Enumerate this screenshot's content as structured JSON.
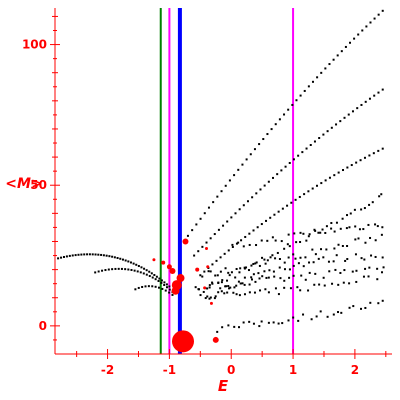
{
  "chart_data": {
    "type": "scatter",
    "title": "",
    "xlabel": "E",
    "ylabel": "<M>",
    "xlim": [
      -2.85,
      2.6
    ],
    "ylim": [
      -10,
      113
    ],
    "x_ticks": [
      -2,
      -1,
      0,
      1,
      2
    ],
    "y_ticks": [
      0,
      50,
      100
    ],
    "x_tick_labels": [
      "-2",
      "-1",
      "0",
      "1",
      "2"
    ],
    "y_tick_labels": [
      "0",
      "50",
      "100"
    ],
    "grid": false,
    "legend": "none",
    "axis_color": "#ff0000",
    "vertical_lines": [
      {
        "x": -1.14,
        "color": "#008000"
      },
      {
        "x": -1.0,
        "color": "#ff00ff"
      },
      {
        "x": -0.83,
        "color": "#0000ff"
      },
      {
        "x": 1.0,
        "color": "#ff00ff"
      }
    ],
    "black_points": {
      "color": "#000000",
      "bands": [
        {
          "x": [
            -2.8,
            -1.82,
            -1.0
          ],
          "y": [
            24,
            29.5,
            14
          ],
          "n": 42
        },
        {
          "x": [
            -2.2,
            -1.5,
            -0.95
          ],
          "y": [
            19,
            23.5,
            12
          ],
          "n": 26
        },
        {
          "x": [
            -1.55,
            -1.25,
            -0.95
          ],
          "y": [
            13,
            16,
            11
          ],
          "n": 12
        },
        {
          "x": [
            -0.7,
            0.9,
            2.45
          ],
          "y": [
            32,
            80,
            112
          ],
          "n": 48
        },
        {
          "x": [
            -0.6,
            0.9,
            2.45
          ],
          "y": [
            25,
            60,
            84
          ],
          "n": 46
        },
        {
          "x": [
            -0.5,
            0.9,
            2.45
          ],
          "y": [
            18,
            46,
            63
          ],
          "n": 44
        },
        {
          "x": [
            -0.5,
            0.9,
            2.45
          ],
          "y": [
            12,
            28,
            46
          ],
          "n": 42
        },
        {
          "x": [
            -0.55,
            0.4,
            2.45
          ],
          "y": [
            14,
            15,
            21
          ],
          "n": 40
        },
        {
          "x": [
            -0.45,
            0.6,
            2.45
          ],
          "y": [
            18,
            22,
            32
          ],
          "n": 40
        },
        {
          "x": [
            -0.5,
            0.5,
            2.45
          ],
          "y": [
            11,
            10,
            18
          ],
          "n": 36
        },
        {
          "x": [
            -0.3,
            0.7,
            2.45
          ],
          "y": [
            11,
            24,
            25
          ],
          "n": 38
        },
        {
          "x": [
            -0.2,
            1.0,
            2.45
          ],
          "y": [
            -1,
            2,
            8
          ],
          "n": 32
        },
        {
          "x": [
            0.0,
            1.4,
            2.45
          ],
          "y": [
            28,
            34,
            36
          ],
          "n": 30
        }
      ]
    },
    "red_points": [
      {
        "x": -0.78,
        "y": -5.5,
        "size": 22
      },
      {
        "x": -0.25,
        "y": -5,
        "size": 6
      },
      {
        "x": -0.88,
        "y": 14.5,
        "size": 10
      },
      {
        "x": -0.9,
        "y": 12.5,
        "size": 8
      },
      {
        "x": -0.82,
        "y": 17,
        "size": 8
      },
      {
        "x": -0.95,
        "y": 19.5,
        "size": 6
      },
      {
        "x": -1.0,
        "y": 21,
        "size": 5
      },
      {
        "x": -1.1,
        "y": 22.5,
        "size": 4
      },
      {
        "x": -1.25,
        "y": 23.5,
        "size": 3
      },
      {
        "x": -0.74,
        "y": 30,
        "size": 6
      },
      {
        "x": -0.55,
        "y": 20,
        "size": 4
      },
      {
        "x": -0.4,
        "y": 27.5,
        "size": 3
      },
      {
        "x": -0.38,
        "y": 21,
        "size": 3
      },
      {
        "x": -0.43,
        "y": 13.5,
        "size": 3
      },
      {
        "x": -0.32,
        "y": 8,
        "size": 3
      }
    ]
  }
}
